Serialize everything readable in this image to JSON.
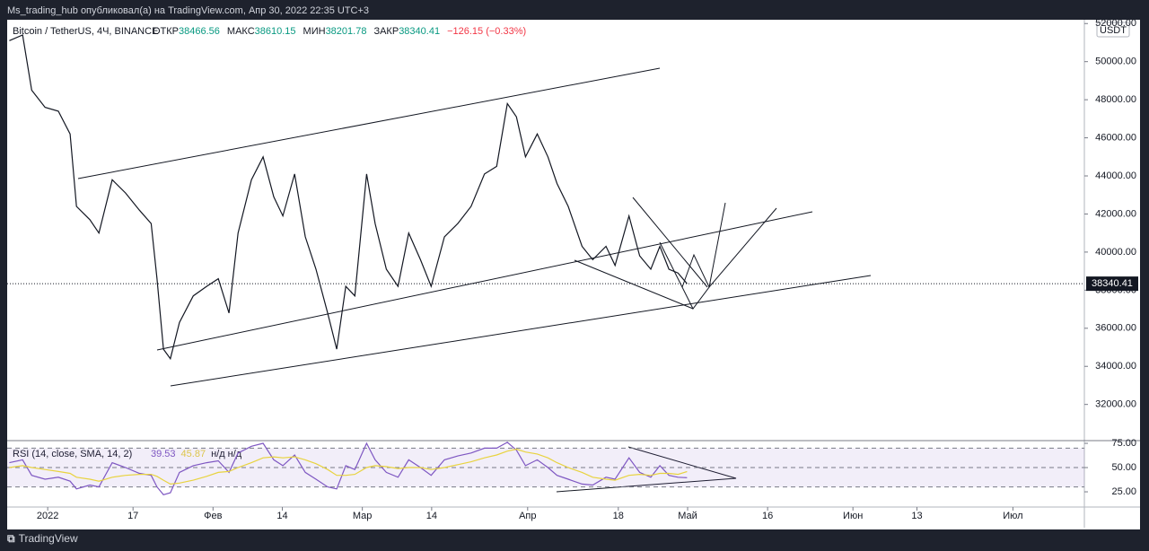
{
  "header": {
    "publisher": "Ms_trading_hub опубликовал(а) на TradingView.com, Апр 30, 2022 22:35 UTC+3"
  },
  "footer": {
    "brand": "TradingView"
  },
  "chart_data": [
    {
      "type": "line",
      "symbol": "Bitcoin / TetherUS, 4Ч, BINANCE",
      "ohlc": [
        {
          "label": "ОТКР",
          "value": "38466.56"
        },
        {
          "label": "МАКС",
          "value": "38610.15"
        },
        {
          "label": "МИН",
          "value": "38201.78"
        },
        {
          "label": "ЗАКР",
          "value": "38340.41"
        }
      ],
      "change": "−126.15 (−0.33%)",
      "currency": "USDT",
      "x": [
        -7.2,
        -4.7,
        -3,
        -0.5,
        2,
        4.2,
        5.4,
        7.9,
        9.6,
        12.1,
        14.6,
        17.2,
        19.4,
        20.5,
        21.7,
        23,
        24.7,
        27.3,
        29.8,
        32,
        34,
        35.7,
        38.2,
        40.4,
        42.4,
        44.1,
        46.3,
        48.3,
        50.3,
        52.5,
        54.2,
        55.9,
        57.6,
        59.8,
        61.4,
        63.5,
        65.7,
        67.7,
        69.9,
        71.9,
        74.4,
        76.9,
        79.4,
        81.9,
        84.2,
        86.2,
        87.9,
        89.6,
        91.8,
        93.8,
        95.5,
        97.6,
        100.2,
        102.2,
        104.7,
        106.4,
        109,
        111,
        113.1,
        114.8,
        116.5,
        118.2,
        119.9
      ],
      "series": [
        {
          "color": "#131722",
          "values": [
            51100,
            51400,
            48500,
            47600,
            47400,
            46200,
            42400,
            41700,
            41000,
            43800,
            43100,
            42200,
            41500,
            38600,
            34900,
            34400,
            36300,
            37700,
            38200,
            38600,
            36800,
            41000,
            43800,
            45000,
            42900,
            41900,
            44100,
            40800,
            39100,
            36800,
            34900,
            38200,
            37700,
            44100,
            41500,
            39100,
            38200,
            41000,
            39600,
            38200,
            40800,
            41500,
            42400,
            44100,
            44500,
            47800,
            47100,
            45000,
            46200,
            45000,
            43600,
            42400,
            40300,
            39600,
            40300,
            39300,
            41900,
            39800,
            39100,
            40300,
            39100,
            38900,
            38340.41
          ]
        }
      ],
      "last_price_color": "#131722",
      "xlim": [
        -7.6,
        194.4
      ],
      "xticks": [
        {
          "value": 0,
          "label": "2022"
        },
        {
          "value": 16,
          "label": "17"
        },
        {
          "value": 31,
          "label": "Фев"
        },
        {
          "value": 44,
          "label": "14"
        },
        {
          "value": 59,
          "label": "Мар"
        },
        {
          "value": 72,
          "label": "14"
        },
        {
          "value": 90,
          "label": "Апр"
        },
        {
          "value": 107,
          "label": "18"
        },
        {
          "value": 120,
          "label": "Май"
        },
        {
          "value": 135,
          "label": "16"
        },
        {
          "value": 151,
          "label": "Июн"
        },
        {
          "value": 163,
          "label": "13"
        },
        {
          "value": 181,
          "label": "Июл"
        }
      ],
      "ylim": [
        30100,
        52200
      ],
      "yticks": [
        {
          "value": 32000,
          "label": "32000.00"
        },
        {
          "value": 34000,
          "label": "34000.00"
        },
        {
          "value": 36000,
          "label": "36000.00"
        },
        {
          "value": 38000,
          "label": "38000.00"
        },
        {
          "value": 40000,
          "label": "40000.00"
        },
        {
          "value": 42000,
          "label": "42000.00"
        },
        {
          "value": 44000,
          "label": "44000.00"
        },
        {
          "value": 46000,
          "label": "46000.00"
        },
        {
          "value": 48000,
          "label": "48000.00"
        },
        {
          "value": 50000,
          "label": "50000.00"
        },
        {
          "value": 52000,
          "label": "52000.00"
        }
      ]
    },
    {
      "type": "line",
      "title": "RSI (14, close, SMA, 14, 2)",
      "status": "н/д н/д",
      "x": [
        -7.2,
        -4.7,
        -3,
        -0.5,
        2,
        4.2,
        5.4,
        7.9,
        9.6,
        12.1,
        14.6,
        17.2,
        19.4,
        20.5,
        21.7,
        23,
        24.7,
        27.3,
        29.8,
        32,
        34,
        35.7,
        38.2,
        40.4,
        42.4,
        44.1,
        46.3,
        48.3,
        50.3,
        52.5,
        54.2,
        55.9,
        57.6,
        59.8,
        61.4,
        63.5,
        65.7,
        67.7,
        69.9,
        71.9,
        74.4,
        76.9,
        79.4,
        81.9,
        84.2,
        86.2,
        87.9,
        89.6,
        91.8,
        93.8,
        95.5,
        97.6,
        100.2,
        102.2,
        104.7,
        106.4,
        109,
        111,
        113.1,
        114.8,
        116.5,
        118.2,
        119.9
      ],
      "series": [
        {
          "color": "#7e57c2",
          "values": [
            55,
            58,
            42,
            38,
            40,
            36,
            28,
            32,
            30,
            55,
            50,
            44,
            42,
            30,
            22,
            24,
            45,
            52,
            55,
            57,
            45,
            65,
            72,
            75,
            58,
            52,
            63,
            45,
            38,
            30,
            28,
            52,
            48,
            75,
            58,
            45,
            40,
            58,
            50,
            42,
            58,
            62,
            65,
            70,
            70,
            76,
            68,
            52,
            58,
            50,
            42,
            38,
            33,
            32,
            40,
            38,
            60,
            45,
            40,
            52,
            42,
            40,
            39.53
          ]
        },
        {
          "color": "#e8d33f",
          "values": [
            50,
            52,
            50,
            48,
            46,
            44,
            40,
            38,
            36,
            40,
            42,
            43,
            43,
            41,
            37,
            33,
            34,
            37,
            41,
            45,
            46,
            50,
            55,
            60,
            61,
            60,
            61,
            58,
            54,
            48,
            42,
            42,
            43,
            50,
            52,
            51,
            49,
            50,
            50,
            48,
            50,
            53,
            56,
            60,
            63,
            67,
            69,
            66,
            64,
            60,
            55,
            50,
            45,
            40,
            38,
            37,
            42,
            43,
            42,
            44,
            44,
            43,
            45.87
          ]
        }
      ],
      "bands": [
        30,
        50,
        70
      ],
      "xlim": [
        -7.6,
        194.4
      ],
      "ylim": [
        9.3,
        77.8
      ],
      "yticks": [
        {
          "value": 25,
          "label": "25.00"
        },
        {
          "value": 50,
          "label": "50.00"
        },
        {
          "value": 75,
          "label": "75.00"
        }
      ]
    }
  ]
}
